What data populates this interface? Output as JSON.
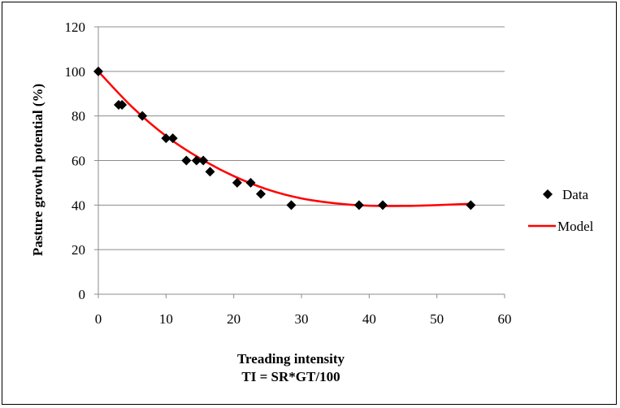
{
  "chart_data": {
    "type": "scatter",
    "title": "",
    "xlabel": [
      "Treading intensity",
      "TI = SR*GT/100"
    ],
    "ylabel": "Pasture growth potential (%)",
    "xlim": [
      0,
      60
    ],
    "ylim": [
      0,
      120
    ],
    "xticks": [
      "0",
      "10",
      "20",
      "30",
      "40",
      "50",
      "60"
    ],
    "yticks": [
      "0",
      "20",
      "40",
      "60",
      "80",
      "100",
      "120"
    ],
    "grid": "horizontal",
    "legend_position": "right",
    "series": [
      {
        "name": "Data",
        "kind": "scatter",
        "marker": "diamond",
        "color": "#000000",
        "points": [
          [
            0,
            100
          ],
          [
            3,
            85
          ],
          [
            3.5,
            85
          ],
          [
            6.5,
            80
          ],
          [
            10,
            70
          ],
          [
            11,
            70
          ],
          [
            13,
            60
          ],
          [
            14.5,
            60
          ],
          [
            15.5,
            60
          ],
          [
            16.5,
            55
          ],
          [
            20.5,
            50
          ],
          [
            22.5,
            50
          ],
          [
            24,
            45
          ],
          [
            28.5,
            40
          ],
          [
            38.5,
            40
          ],
          [
            42,
            40
          ],
          [
            55,
            40
          ]
        ]
      },
      {
        "name": "Model",
        "kind": "line",
        "color": "#ff0000",
        "points": [
          [
            0,
            100
          ],
          [
            5,
            84
          ],
          [
            10,
            71
          ],
          [
            15,
            61
          ],
          [
            20,
            53
          ],
          [
            25,
            47
          ],
          [
            30,
            43
          ],
          [
            35,
            40.8
          ],
          [
            40,
            39.7
          ],
          [
            45,
            39.6
          ],
          [
            50,
            40
          ],
          [
            55,
            40.6
          ]
        ]
      }
    ]
  }
}
